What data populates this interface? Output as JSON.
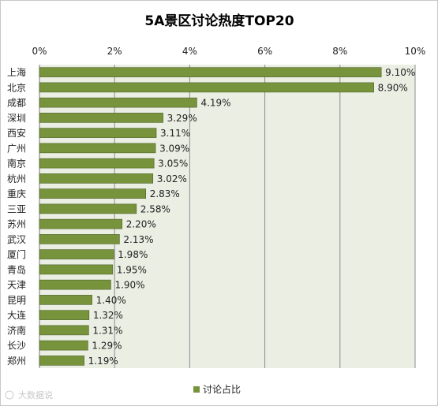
{
  "watermark": "大数据说",
  "chart_data": {
    "type": "bar",
    "orientation": "horizontal",
    "title": "5A景区讨论热度TOP20",
    "categories": [
      "上海",
      "北京",
      "成都",
      "深圳",
      "西安",
      "广州",
      "南京",
      "杭州",
      "重庆",
      "三亚",
      "苏州",
      "武汉",
      "厦门",
      "青岛",
      "天津",
      "昆明",
      "大连",
      "济南",
      "长沙",
      "郑州"
    ],
    "series": [
      {
        "name": "讨论占比",
        "values": [
          9.1,
          8.9,
          4.19,
          3.29,
          3.11,
          3.09,
          3.05,
          3.02,
          2.83,
          2.58,
          2.2,
          2.13,
          1.98,
          1.95,
          1.9,
          1.4,
          1.32,
          1.31,
          1.29,
          1.19
        ],
        "labels": [
          "9.10%",
          "8.90%",
          "4.19%",
          "3.29%",
          "3.11%",
          "3.09%",
          "3.05%",
          "3.02%",
          "2.83%",
          "2.58%",
          "2.20%",
          "2.13%",
          "1.98%",
          "1.95%",
          "1.90%",
          "1.40%",
          "1.32%",
          "1.31%",
          "1.29%",
          "1.19%"
        ]
      }
    ],
    "xlim": [
      0,
      10
    ],
    "x_ticks": [
      0,
      2,
      4,
      6,
      8,
      10
    ],
    "x_tick_labels": [
      "0%",
      "2%",
      "4%",
      "6%",
      "8%",
      "10%"
    ],
    "x_axis_position": "top",
    "grid": true,
    "legend_position": "bottom",
    "colors": {
      "bar": "#77933c",
      "bar_stroke": "#4f6228",
      "plot_background": "#eaeee3",
      "gridline": "#8c8c8c"
    }
  }
}
